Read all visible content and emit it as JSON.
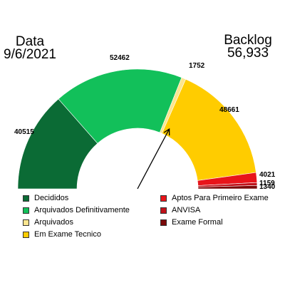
{
  "header": {
    "left_title": "Data",
    "left_value": "9/6/2021",
    "right_title": "Backlog",
    "right_value": "56,933"
  },
  "chart_data": {
    "type": "gauge",
    "segments": [
      {
        "name": "Decididos",
        "value": 40515,
        "label": "40515",
        "color": "#0b6b35"
      },
      {
        "name": "Arquivados Definitivamente",
        "value": 52462,
        "label": "52462",
        "color": "#12c05a"
      },
      {
        "name": "Arquivados",
        "value": 1752,
        "label": "1752",
        "color": "#fbe58f"
      },
      {
        "name": "Em Exame Tecnico",
        "value": 48661,
        "label": "48661",
        "color": "#ffcc00"
      },
      {
        "name": "Aptos Para Primeiro Exame",
        "value": 4021,
        "label": "4021",
        "color": "#e8141a"
      },
      {
        "name": "ANVISA",
        "value": 1159,
        "label": "1159",
        "color": "#c0121a"
      },
      {
        "name": "Exame Formal",
        "value": 1340,
        "label": "1340",
        "color": "#7b0a0a"
      }
    ],
    "needle_fraction": 0.6555,
    "legend_columns": [
      [
        "Decididos",
        "Arquivados Definitivamente",
        "Arquivados",
        "Em Exame Tecnico"
      ],
      [
        "Aptos Para Primeiro Exame",
        "ANVISA",
        "Exame Formal"
      ]
    ]
  }
}
